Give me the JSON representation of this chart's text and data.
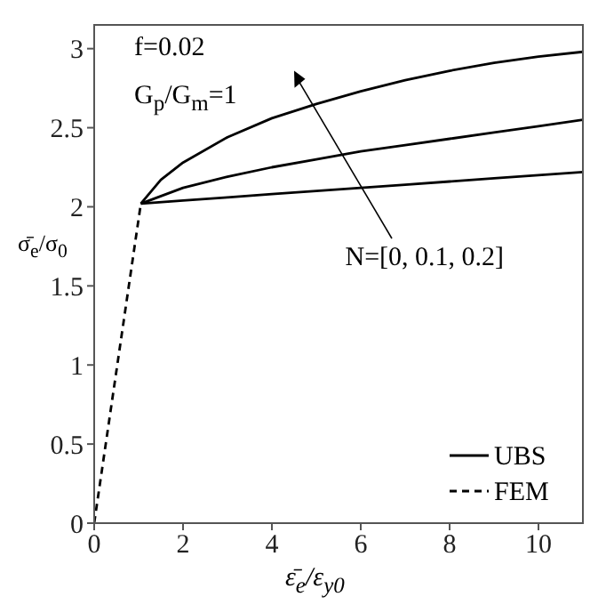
{
  "chart_data": {
    "type": "line",
    "xlabel": "ε̄$_{e}$/ε$_{y0}$",
    "ylabel": "σ̄$_{e}$/σ$_{0}$",
    "xlim": [
      0,
      11
    ],
    "xticks": [
      0,
      2,
      4,
      6,
      8,
      10
    ],
    "ylim": [
      0,
      3.15
    ],
    "yticks": [
      0,
      0.5,
      1,
      1.5,
      2,
      2.5,
      3
    ],
    "legend": "bottom right",
    "marker": "none",
    "series": [
      {
        "name": "UBS",
        "color": "#000000",
        "line_style": "solid",
        "x": [
          1.05,
          2,
          3,
          4,
          5,
          6,
          7,
          8,
          9,
          10,
          11
        ],
        "values": [
          2.02,
          2.04,
          2.06,
          2.08,
          2.1,
          2.12,
          2.14,
          2.16,
          2.18,
          2.2,
          2.22
        ]
      },
      {
        "color": "#000000",
        "line_style": "solid",
        "x": [
          1.05,
          2,
          3,
          4,
          5,
          6,
          7,
          8,
          9,
          10,
          11
        ],
        "values": [
          2.02,
          2.12,
          2.19,
          2.25,
          2.3,
          2.35,
          2.39,
          2.43,
          2.47,
          2.51,
          2.55
        ]
      },
      {
        "color": "#000000",
        "line_style": "solid",
        "x": [
          1.05,
          1.5,
          2,
          3,
          4,
          5,
          6,
          7,
          8,
          9,
          10,
          11
        ],
        "values": [
          2.02,
          2.17,
          2.28,
          2.44,
          2.56,
          2.65,
          2.73,
          2.8,
          2.86,
          2.91,
          2.95,
          2.98
        ]
      },
      {
        "name": "FEM",
        "color": "#000000",
        "line_style": "dashed",
        "x": [
          0,
          1.05
        ],
        "values": [
          0,
          2.02
        ]
      }
    ],
    "annotations": [
      "f=0.02",
      "G$_{p}$/G$_{m}$=1",
      "N=[0, 0.1, 0.2]"
    ]
  }
}
